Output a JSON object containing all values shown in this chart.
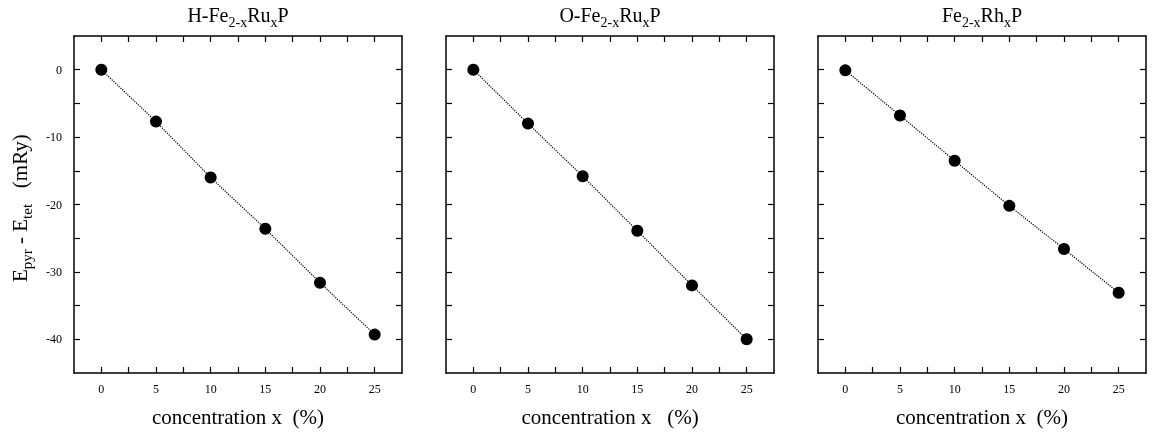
{
  "chart_data": [
    {
      "type": "line",
      "title": "H-Fe$_{2-x}$Ru$_{x}$P",
      "xlabel": "concentration x  (%)",
      "ylabel": "E$_{pyr}$ - E$_{tet}$   (mRy)",
      "x": [
        0,
        5,
        10,
        15,
        20,
        25
      ],
      "values": [
        0,
        -7.7,
        -16.0,
        -23.6,
        -31.6,
        -39.3
      ],
      "color": "#000000",
      "marker": "circle",
      "line_style": "dotted",
      "xlim": [
        -2.5,
        27.5
      ],
      "xticks": [
        0,
        {
          "value": 2.5,
          "label": null
        },
        5,
        {
          "value": 7.5,
          "label": null
        },
        10,
        {
          "value": 12.5,
          "label": null
        },
        15,
        {
          "value": 17.5,
          "label": null
        },
        20,
        {
          "value": 22.5,
          "label": null
        },
        25
      ],
      "ylim": [
        -45,
        5
      ],
      "yticks": [
        {
          "value": -40,
          "label": "-40"
        },
        {
          "value": -35,
          "label": null
        },
        {
          "value": -30,
          "label": "-30"
        },
        {
          "value": -25,
          "label": null
        },
        {
          "value": -20,
          "label": "-20"
        },
        {
          "value": -15,
          "label": null
        },
        {
          "value": -10,
          "label": "-10"
        },
        {
          "value": -5,
          "label": null
        },
        0
      ]
    },
    {
      "type": "line",
      "title": "O-Fe$_{2-x}$Ru$_{x}$P",
      "xlabel": "concentration x   (%)",
      "x": [
        0,
        5,
        10,
        15,
        20,
        25
      ],
      "values": [
        0,
        -8.0,
        -15.8,
        -23.9,
        -32.0,
        -40.0
      ],
      "color": "#000000",
      "marker": "circle",
      "line_style": "dotted",
      "xlim": [
        -2.5,
        27.5
      ],
      "xticks": [
        0,
        {
          "value": 2.5,
          "label": null
        },
        5,
        {
          "value": 7.5,
          "label": null
        },
        10,
        {
          "value": 12.5,
          "label": null
        },
        15,
        {
          "value": 17.5,
          "label": null
        },
        20,
        {
          "value": 22.5,
          "label": null
        },
        25
      ],
      "ylim": [
        -45,
        5
      ],
      "yticks": [
        {
          "value": -40,
          "label": null
        },
        {
          "value": -35,
          "label": null
        },
        {
          "value": -30,
          "label": null
        },
        {
          "value": -25,
          "label": null
        },
        {
          "value": -20,
          "label": null
        },
        {
          "value": -15,
          "label": null
        },
        {
          "value": -10,
          "label": null
        },
        {
          "value": -5,
          "label": null
        },
        {
          "value": 0,
          "label": null
        }
      ],
      "tick_labels": "x"
    },
    {
      "type": "line",
      "title": "Fe$_{2-x}$Rh$_{x}$P",
      "xlabel": "concentration x  (%)",
      "x": [
        0,
        5,
        10,
        15,
        20,
        25
      ],
      "values": [
        -0.1,
        -6.8,
        -13.5,
        -20.2,
        -26.6,
        -33.1
      ],
      "color": "#000000",
      "marker": "circle",
      "line_style": "dotted",
      "xlim": [
        -2.5,
        27.5
      ],
      "xticks": [
        0,
        {
          "value": 2.5,
          "label": null
        },
        5,
        {
          "value": 7.5,
          "label": null
        },
        10,
        {
          "value": 12.5,
          "label": null
        },
        15,
        {
          "value": 17.5,
          "label": null
        },
        20,
        {
          "value": 22.5,
          "label": null
        },
        25
      ],
      "ylim": [
        -45,
        5
      ],
      "yticks": [
        {
          "value": -40,
          "label": null
        },
        {
          "value": -35,
          "label": null
        },
        {
          "value": -30,
          "label": null
        },
        {
          "value": -25,
          "label": null
        },
        {
          "value": -20,
          "label": null
        },
        {
          "value": -15,
          "label": null
        },
        {
          "value": -10,
          "label": null
        },
        {
          "value": -5,
          "label": null
        },
        {
          "value": 0,
          "label": null
        }
      ],
      "tick_labels": "x"
    }
  ]
}
